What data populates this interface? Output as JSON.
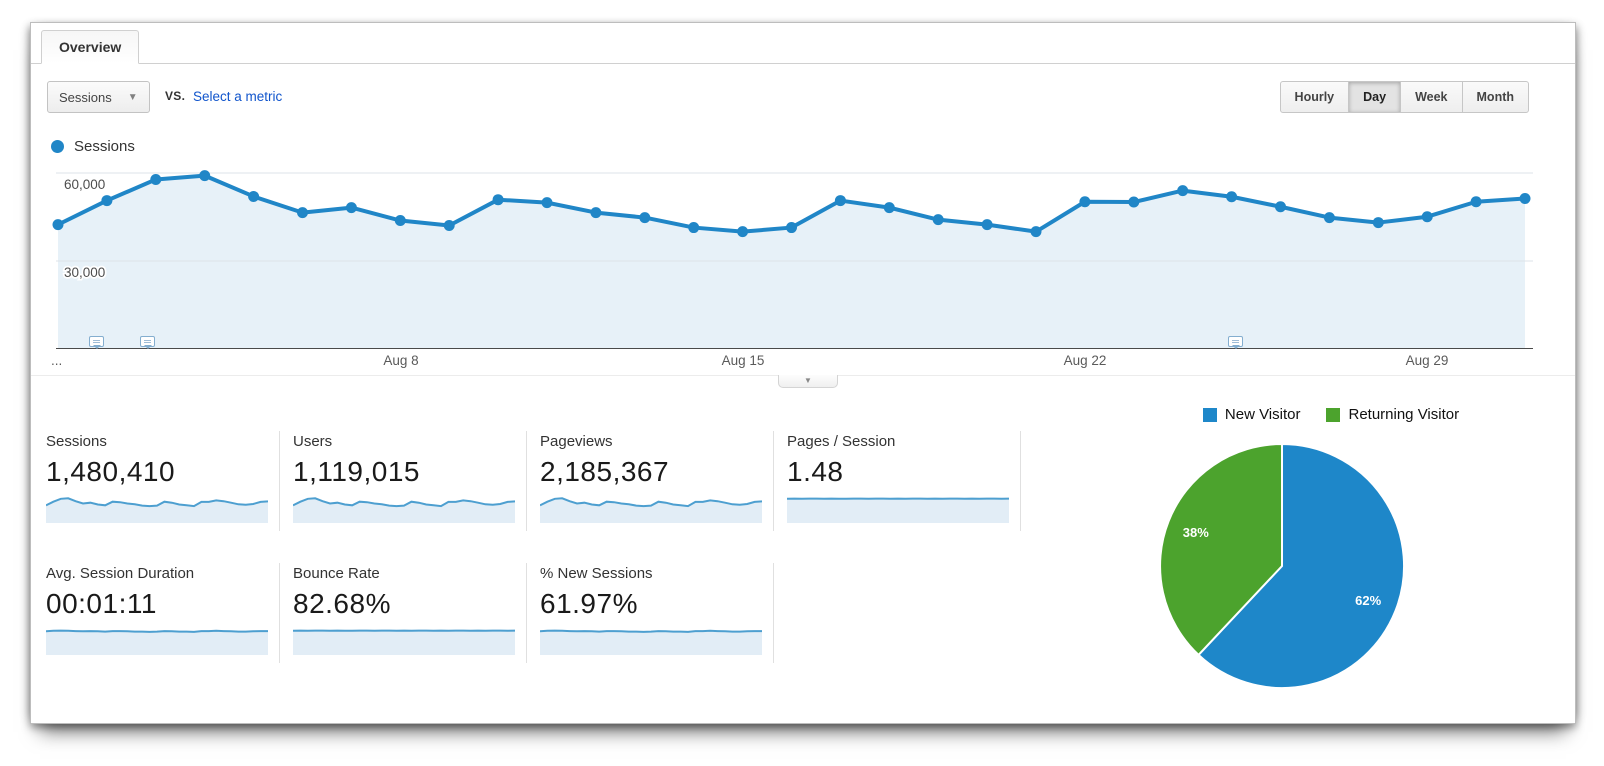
{
  "tab_label": "Overview",
  "toolbar": {
    "metric_selector_value": "Sessions",
    "vs_label": "vs.",
    "select_metric_link": "Select a metric",
    "granularity_options": [
      "Hourly",
      "Day",
      "Week",
      "Month"
    ],
    "granularity_selected": "Day"
  },
  "chart": {
    "legend_label": "Sessions",
    "x_ticks": [
      "...",
      "Aug 8",
      "Aug 15",
      "Aug 22",
      "Aug 29"
    ]
  },
  "chart_data": [
    {
      "type": "line",
      "series_name": "Sessions",
      "x": [
        "Aug 1",
        "Aug 2",
        "Aug 3",
        "Aug 4",
        "Aug 5",
        "Aug 6",
        "Aug 7",
        "Aug 8",
        "Aug 9",
        "Aug 10",
        "Aug 11",
        "Aug 12",
        "Aug 13",
        "Aug 14",
        "Aug 15",
        "Aug 16",
        "Aug 17",
        "Aug 18",
        "Aug 19",
        "Aug 20",
        "Aug 21",
        "Aug 22",
        "Aug 23",
        "Aug 24",
        "Aug 25",
        "Aug 26",
        "Aug 27",
        "Aug 28",
        "Aug 29",
        "Aug 30",
        "Aug 31"
      ],
      "values": [
        42400,
        50600,
        57800,
        59100,
        52000,
        46500,
        48200,
        43800,
        42100,
        50900,
        49900,
        46500,
        44800,
        41400,
        40000,
        41400,
        50600,
        48200,
        44100,
        42400,
        40000,
        50200,
        50100,
        54000,
        51900,
        48500,
        44800,
        43100,
        45100,
        50200,
        51300
      ],
      "ylim": [
        0,
        63400
      ],
      "y_ticks": [
        {
          "value": 60000,
          "label": "60,000"
        },
        {
          "value": 30000,
          "label": "30,000"
        }
      ],
      "x_tick_labels_shown": [
        "Aug 8",
        "Aug 15",
        "Aug 22",
        "Aug 29"
      ],
      "annotation_day_positions": [
        1.8,
        2.85,
        25.1
      ],
      "grid": true,
      "legend_position": "top-left"
    },
    {
      "type": "pie",
      "slices": [
        {
          "label": "New Visitor",
          "percent": 62,
          "color": "#1e87c9"
        },
        {
          "label": "Returning Visitor",
          "percent": 38,
          "color": "#4ca32d"
        }
      ],
      "start_angle_deg": 0,
      "direction": "clockwise",
      "labels_shown": [
        "62%",
        "38%"
      ]
    }
  ],
  "spark_shapes": {
    "volume": [
      0.68,
      0.82,
      0.93,
      0.95,
      0.84,
      0.75,
      0.78,
      0.71,
      0.68,
      0.82,
      0.8,
      0.75,
      0.72,
      0.67,
      0.65,
      0.67,
      0.82,
      0.78,
      0.71,
      0.68,
      0.65,
      0.81,
      0.81,
      0.87,
      0.84,
      0.78,
      0.72,
      0.7,
      0.73,
      0.81,
      0.83
    ],
    "flat": [
      0.93,
      0.94,
      0.93,
      0.94,
      0.94,
      0.93,
      0.94,
      0.93,
      0.93,
      0.94,
      0.94,
      0.93,
      0.94,
      0.94,
      0.93,
      0.94,
      0.93,
      0.94,
      0.94,
      0.93,
      0.94,
      0.93,
      0.94,
      0.94,
      0.93,
      0.94,
      0.93,
      0.94,
      0.94,
      0.93,
      0.94
    ],
    "mostly_flat": [
      0.91,
      0.93,
      0.94,
      0.93,
      0.92,
      0.91,
      0.92,
      0.91,
      0.9,
      0.92,
      0.92,
      0.91,
      0.9,
      0.9,
      0.89,
      0.9,
      0.92,
      0.91,
      0.9,
      0.9,
      0.89,
      0.92,
      0.92,
      0.93,
      0.92,
      0.91,
      0.9,
      0.9,
      0.91,
      0.92,
      0.92
    ]
  },
  "metrics": {
    "cards": [
      {
        "label": "Sessions",
        "value": "1,480,410",
        "spark": "volume"
      },
      {
        "label": "Users",
        "value": "1,119,015",
        "spark": "volume"
      },
      {
        "label": "Pageviews",
        "value": "2,185,367",
        "spark": "volume"
      },
      {
        "label": "Pages / Session",
        "value": "1.48",
        "spark": "flat"
      },
      {
        "label": "Avg. Session Duration",
        "value": "00:01:11",
        "spark": "mostly_flat"
      },
      {
        "label": "Bounce Rate",
        "value": "82.68%",
        "spark": "flat"
      },
      {
        "label": "% New Sessions",
        "value": "61.97%",
        "spark": "mostly_flat"
      }
    ]
  },
  "visitor_legend": [
    {
      "label": "New Visitor",
      "color": "#1e87c9"
    },
    {
      "label": "Returning Visitor",
      "color": "#4ca32d"
    }
  ],
  "colors": {
    "line_blue": "#2086c7",
    "area_fill": "#e7f1f8",
    "spark_line": "#4d9fd0",
    "spark_fill": "#e2edf6",
    "gridline": "#dde3e8",
    "axis": "#4a4a4a",
    "pie_blue": "#1e87c9",
    "pie_green": "#4ca32d",
    "link_blue": "#1155cc"
  }
}
